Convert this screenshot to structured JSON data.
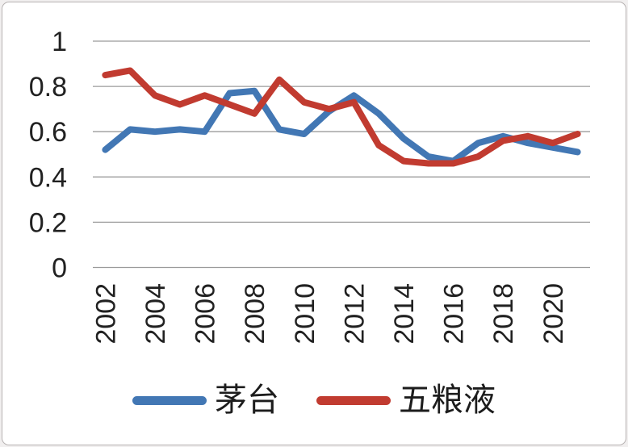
{
  "chart_data": {
    "type": "line",
    "title": "",
    "xlabel": "",
    "ylabel": "",
    "categories": [
      "2002",
      "2003",
      "2004",
      "2005",
      "2006",
      "2007",
      "2008",
      "2009",
      "2010",
      "2011",
      "2012",
      "2013",
      "2014",
      "2015",
      "2016",
      "2017",
      "2018",
      "2019",
      "2020",
      "2021"
    ],
    "x_tick_step": 2,
    "x_tick_labels": [
      "2002",
      "2004",
      "2006",
      "2008",
      "2010",
      "2012",
      "2014",
      "2016",
      "2018",
      "2020"
    ],
    "ylim": [
      0,
      1
    ],
    "y_ticks": [
      0,
      0.2,
      0.4,
      0.6,
      0.8,
      1
    ],
    "y_tick_labels": [
      "0",
      "0.2",
      "0.4",
      "0.6",
      "0.8",
      "1"
    ],
    "grid": true,
    "legend_position": "bottom",
    "series": [
      {
        "name": "茅台",
        "slug": "maotai",
        "color": "#4277B4",
        "values": [
          0.52,
          0.61,
          0.6,
          0.61,
          0.6,
          0.77,
          0.78,
          0.61,
          0.59,
          0.69,
          0.76,
          0.68,
          0.57,
          0.49,
          0.47,
          0.55,
          0.58,
          0.55,
          0.53,
          0.51
        ]
      },
      {
        "name": "五粮液",
        "slug": "wuliangye",
        "color": "#C13B30",
        "values": [
          0.85,
          0.87,
          0.76,
          0.72,
          0.76,
          0.72,
          0.68,
          0.83,
          0.73,
          0.7,
          0.73,
          0.54,
          0.47,
          0.46,
          0.46,
          0.49,
          0.56,
          0.58,
          0.55,
          0.59
        ]
      }
    ]
  },
  "styles": {
    "grid_color": "#9b9b9b",
    "text_color": "#212121",
    "line_width": 8,
    "tick_font_size": 34
  }
}
